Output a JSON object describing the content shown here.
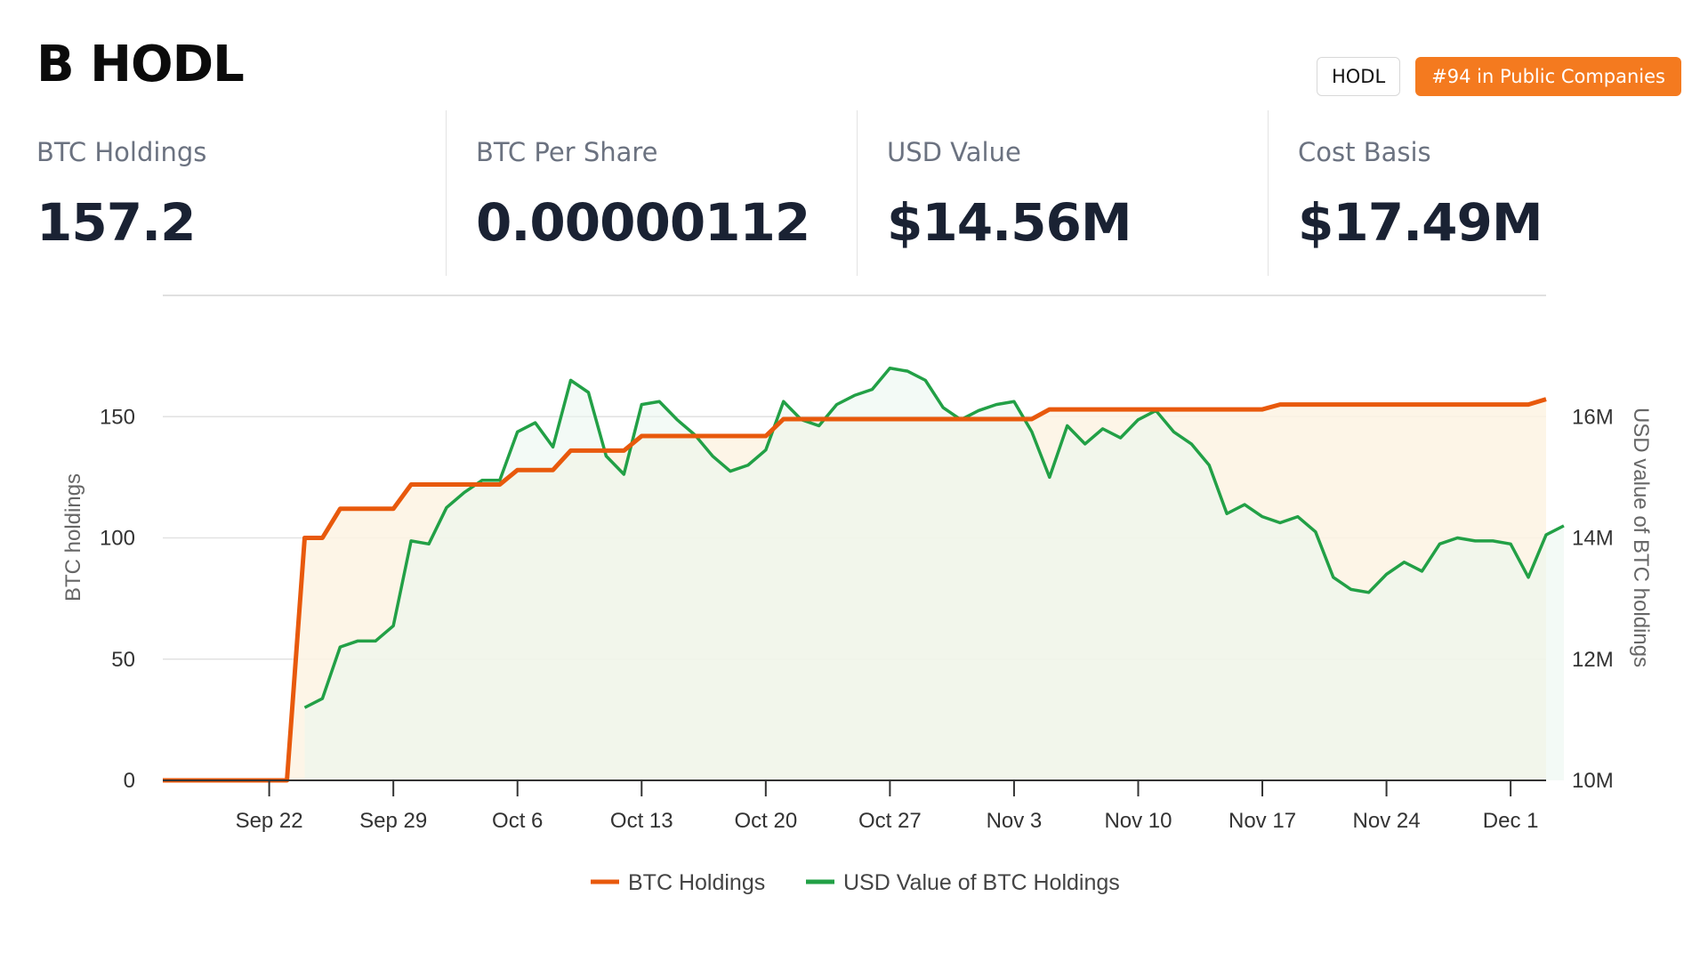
{
  "header": {
    "title": "B HODL",
    "ticker": "HODL",
    "rank_badge": "#94 in Public Companies"
  },
  "stats": [
    {
      "label": "BTC Holdings",
      "value": "157.2"
    },
    {
      "label": "BTC Per Share",
      "value": "0.00000112"
    },
    {
      "label": "USD Value",
      "value": "$14.56M"
    },
    {
      "label": "Cost Basis",
      "value": "$17.49M"
    }
  ],
  "colors": {
    "btc_line": "#e8590c",
    "btc_fill": "#fdf3e3",
    "usd_line": "#22a046",
    "usd_fill": "#eaf6ee",
    "badge": "#f47a1f"
  },
  "chart_data": {
    "type": "line",
    "xlabel": "",
    "y_left_label": "BTC holdings",
    "y_right_label": "USD value of BTC holdings",
    "x_ticks": [
      "Sep 22",
      "Sep 29",
      "Oct 6",
      "Oct 13",
      "Oct 20",
      "Oct 27",
      "Nov 3",
      "Nov 10",
      "Nov 17",
      "Nov 24",
      "Dec 1"
    ],
    "y_left_ticks": [
      "0",
      "50",
      "100",
      "150"
    ],
    "y_right_ticks": [
      "10M",
      "12M",
      "14M",
      "16M"
    ],
    "y_left_range": [
      0,
      200
    ],
    "y_right_range": [
      10000000,
      18000000
    ],
    "x_range": [
      "Sep 16",
      "Dec 3"
    ],
    "grid": true,
    "legend_position": "bottom",
    "series": [
      {
        "name": "BTC Holdings",
        "axis": "left",
        "step": true,
        "points": [
          [
            "Sep 16",
            0
          ],
          [
            "Sep 23",
            0
          ],
          [
            "Sep 24",
            100
          ],
          [
            "Sep 25",
            100
          ],
          [
            "Sep 26",
            112
          ],
          [
            "Sep 29",
            112
          ],
          [
            "Sep 30",
            122
          ],
          [
            "Oct 5",
            122
          ],
          [
            "Oct 6",
            128
          ],
          [
            "Oct 8",
            128
          ],
          [
            "Oct 9",
            136
          ],
          [
            "Oct 12",
            136
          ],
          [
            "Oct 13",
            142
          ],
          [
            "Oct 20",
            142
          ],
          [
            "Oct 21",
            149
          ],
          [
            "Nov 4",
            149
          ],
          [
            "Nov 5",
            153
          ],
          [
            "Nov 17",
            153
          ],
          [
            "Nov 18",
            155
          ],
          [
            "Dec 2",
            155
          ],
          [
            "Dec 3",
            157.2
          ]
        ]
      },
      {
        "name": "USD Value of BTC Holdings",
        "axis": "right",
        "step": false,
        "points": [
          [
            "Sep 24",
            11.2
          ],
          [
            "Sep 25",
            11.35
          ],
          [
            "Sep 26",
            12.2
          ],
          [
            "Sep 27",
            12.3
          ],
          [
            "Sep 28",
            12.3
          ],
          [
            "Sep 29",
            12.55
          ],
          [
            "Sep 30",
            13.95
          ],
          [
            "Oct 1",
            13.9
          ],
          [
            "Oct 2",
            14.5
          ],
          [
            "Oct 3",
            14.75
          ],
          [
            "Oct 4",
            14.95
          ],
          [
            "Oct 5",
            14.95
          ],
          [
            "Oct 6",
            15.75
          ],
          [
            "Oct 7",
            15.9
          ],
          [
            "Oct 8",
            15.5
          ],
          [
            "Oct 9",
            16.6
          ],
          [
            "Oct 10",
            16.4
          ],
          [
            "Oct 11",
            15.35
          ],
          [
            "Oct 12",
            15.05
          ],
          [
            "Oct 13",
            16.2
          ],
          [
            "Oct 14",
            16.25
          ],
          [
            "Oct 15",
            15.95
          ],
          [
            "Oct 16",
            15.7
          ],
          [
            "Oct 17",
            15.35
          ],
          [
            "Oct 18",
            15.1
          ],
          [
            "Oct 19",
            15.2
          ],
          [
            "Oct 20",
            15.45
          ],
          [
            "Oct 21",
            16.25
          ],
          [
            "Oct 22",
            15.95
          ],
          [
            "Oct 23",
            15.85
          ],
          [
            "Oct 24",
            16.2
          ],
          [
            "Oct 25",
            16.35
          ],
          [
            "Oct 26",
            16.45
          ],
          [
            "Oct 27",
            16.8
          ],
          [
            "Oct 28",
            16.75
          ],
          [
            "Oct 29",
            16.6
          ],
          [
            "Oct 30",
            16.15
          ],
          [
            "Oct 31",
            15.95
          ],
          [
            "Nov 1",
            16.1
          ],
          [
            "Nov 2",
            16.2
          ],
          [
            "Nov 3",
            16.25
          ],
          [
            "Nov 4",
            15.75
          ],
          [
            "Nov 5",
            15.0
          ],
          [
            "Nov 6",
            15.85
          ],
          [
            "Nov 7",
            15.55
          ],
          [
            "Nov 8",
            15.8
          ],
          [
            "Nov 9",
            15.65
          ],
          [
            "Nov 10",
            15.95
          ],
          [
            "Nov 11",
            16.1
          ],
          [
            "Nov 12",
            15.75
          ],
          [
            "Nov 13",
            15.55
          ],
          [
            "Nov 14",
            15.2
          ],
          [
            "Nov 15",
            14.4
          ],
          [
            "Nov 16",
            14.55
          ],
          [
            "Nov 17",
            14.35
          ],
          [
            "Nov 18",
            14.25
          ],
          [
            "Nov 19",
            14.35
          ],
          [
            "Nov 20",
            14.1
          ],
          [
            "Nov 21",
            13.35
          ],
          [
            "Nov 22",
            13.15
          ],
          [
            "Nov 23",
            13.1
          ],
          [
            "Nov 24",
            13.4
          ],
          [
            "Nov 25",
            13.6
          ],
          [
            "Nov 26",
            13.45
          ],
          [
            "Nov 27",
            13.9
          ],
          [
            "Nov 28",
            14.0
          ],
          [
            "Nov 29",
            13.95
          ],
          [
            "Nov 30",
            13.95
          ],
          [
            "Dec 1",
            13.9
          ],
          [
            "Dec 2",
            13.35
          ],
          [
            "Dec 3",
            14.05
          ],
          [
            "Dec 4",
            14.2
          ]
        ]
      }
    ]
  }
}
